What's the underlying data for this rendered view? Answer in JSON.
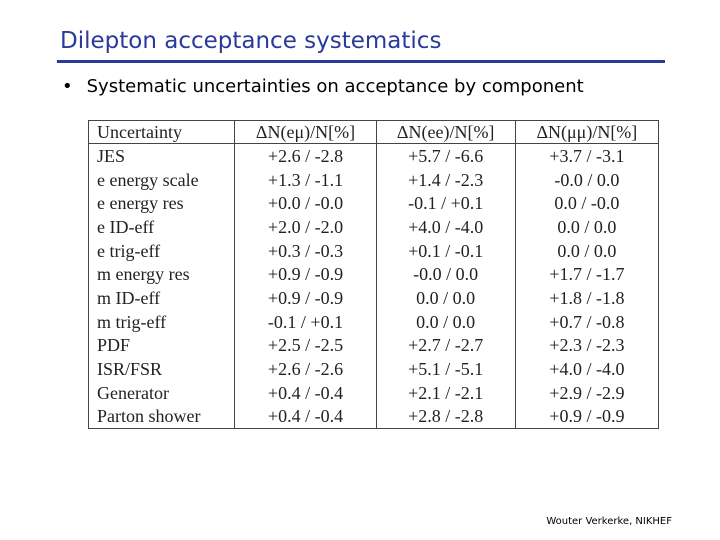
{
  "header": {
    "title": "Dilepton acceptance systematics"
  },
  "bullets": [
    "Systematic uncertainties on acceptance by component"
  ],
  "table": {
    "header": [
      "Uncertainty",
      "ΔN(eμ)/N[%]",
      "ΔN(ee)/N[%]",
      "ΔN(μμ)/N[%]"
    ],
    "rows": [
      [
        "JES",
        "+2.6 / -2.8",
        "+5.7 / -6.6",
        "+3.7 / -3.1"
      ],
      [
        "e energy scale",
        "+1.3 / -1.1",
        "+1.4 / -2.3",
        "-0.0 / 0.0"
      ],
      [
        "e energy res",
        "+0.0 / -0.0",
        "-0.1 / +0.1",
        "0.0 / -0.0"
      ],
      [
        "e ID-eff",
        "+2.0 / -2.0",
        "+4.0 / -4.0",
        "0.0 / 0.0"
      ],
      [
        "e trig-eff",
        "+0.3 / -0.3",
        "+0.1 / -0.1",
        "0.0 / 0.0"
      ],
      [
        "m energy res",
        "+0.9 / -0.9",
        "-0.0 / 0.0",
        "+1.7 / -1.7"
      ],
      [
        "m ID-eff",
        "+0.9 / -0.9",
        "0.0 / 0.0",
        "+1.8 / -1.8"
      ],
      [
        "m trig-eff",
        "-0.1 / +0.1",
        "0.0 / 0.0",
        "+0.7 / -0.8"
      ],
      [
        "PDF",
        "+2.5 / -2.5",
        "+2.7 / -2.7",
        "+2.3 / -2.3"
      ],
      [
        "ISR/FSR",
        "+2.6 / -2.6",
        "+5.1 / -5.1",
        "+4.0 / -4.0"
      ],
      [
        "Generator",
        "+0.4 / -0.4",
        "+2.1 / -2.1",
        "+2.9 / -2.9"
      ],
      [
        "Parton shower",
        "+0.4 / -0.4",
        "+2.8 / -2.8",
        "+0.9 / -0.9"
      ]
    ]
  },
  "footer": "Wouter Verkerke, NIKHEF"
}
